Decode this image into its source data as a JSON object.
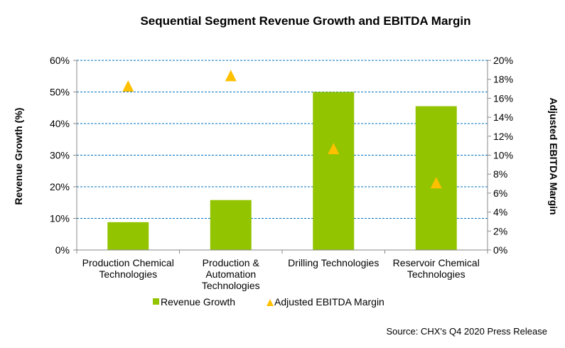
{
  "chart_data": {
    "type": "bar",
    "title": "Sequential Segment Revenue Growth and EBITDA Margin",
    "categories": [
      [
        "Production Chemical",
        "Technologies"
      ],
      [
        "Production &",
        "Automation",
        "Technologies"
      ],
      [
        "Drilling Technologies"
      ],
      [
        "Reservoir Chemical",
        "Technologies"
      ]
    ],
    "ylabel": "Revenue Growth (%)",
    "y2label": "Adjusted EBITDA Margin",
    "ylim": [
      0,
      60
    ],
    "y2lim": [
      0,
      20
    ],
    "yticks": [
      "0%",
      "10%",
      "20%",
      "30%",
      "40%",
      "50%",
      "60%"
    ],
    "y2ticks": [
      "0%",
      "2%",
      "4%",
      "6%",
      "8%",
      "10%",
      "12%",
      "14%",
      "16%",
      "18%",
      "20%"
    ],
    "grid": true,
    "legend": "bottom",
    "series": [
      {
        "name": "Revenue Growth",
        "type": "bar",
        "axis": "left",
        "color": "#92C400",
        "values": [
          8.8,
          15.8,
          50.0,
          45.5
        ]
      },
      {
        "name": "Adjusted EBITDA Margin",
        "type": "scatter-triangle",
        "axis": "right",
        "color": "#FFC000",
        "values": [
          17.3,
          18.4,
          10.7,
          7.1
        ]
      }
    ],
    "source": "Source: CHX's Q4 2020 Press Release"
  }
}
